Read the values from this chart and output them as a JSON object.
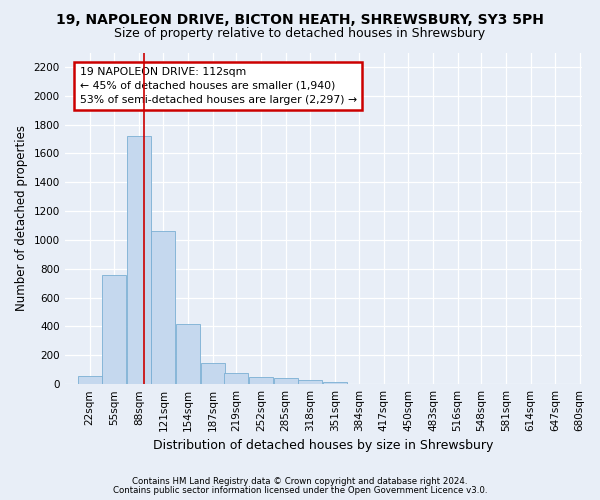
{
  "title": "19, NAPOLEON DRIVE, BICTON HEATH, SHREWSBURY, SY3 5PH",
  "subtitle": "Size of property relative to detached houses in Shrewsbury",
  "xlabel": "Distribution of detached houses by size in Shrewsbury",
  "ylabel": "Number of detached properties",
  "footnote1": "Contains HM Land Registry data © Crown copyright and database right 2024.",
  "footnote2": "Contains public sector information licensed under the Open Government Licence v3.0.",
  "annotation_title": "19 NAPOLEON DRIVE: 112sqm",
  "annotation_line1": "← 45% of detached houses are smaller (1,940)",
  "annotation_line2": "53% of semi-detached houses are larger (2,297) →",
  "bar_color": "#c5d8ee",
  "bar_edge_color": "#7aafd4",
  "vline_color": "#cc0000",
  "vline_x": 112,
  "categories": [
    "22sqm",
    "55sqm",
    "88sqm",
    "121sqm",
    "154sqm",
    "187sqm",
    "219sqm",
    "252sqm",
    "285sqm",
    "318sqm",
    "351sqm",
    "384sqm",
    "417sqm",
    "450sqm",
    "483sqm",
    "516sqm",
    "548sqm",
    "581sqm",
    "614sqm",
    "647sqm",
    "680sqm"
  ],
  "bin_edges": [
    22,
    55,
    88,
    121,
    154,
    187,
    219,
    252,
    285,
    318,
    351,
    384,
    417,
    450,
    483,
    516,
    548,
    581,
    614,
    647,
    680
  ],
  "bin_width": 33,
  "values": [
    55,
    760,
    1720,
    1060,
    415,
    150,
    80,
    48,
    40,
    28,
    18,
    0,
    0,
    0,
    0,
    0,
    0,
    0,
    0,
    0,
    0
  ],
  "ylim": [
    0,
    2300
  ],
  "xlim": [
    5,
    700
  ],
  "bg_color": "#e8eef7",
  "plot_bg_color": "#e8eef7",
  "title_fontsize": 10,
  "subtitle_fontsize": 9,
  "tick_fontsize": 7.5,
  "ylabel_fontsize": 8.5,
  "xlabel_fontsize": 9
}
